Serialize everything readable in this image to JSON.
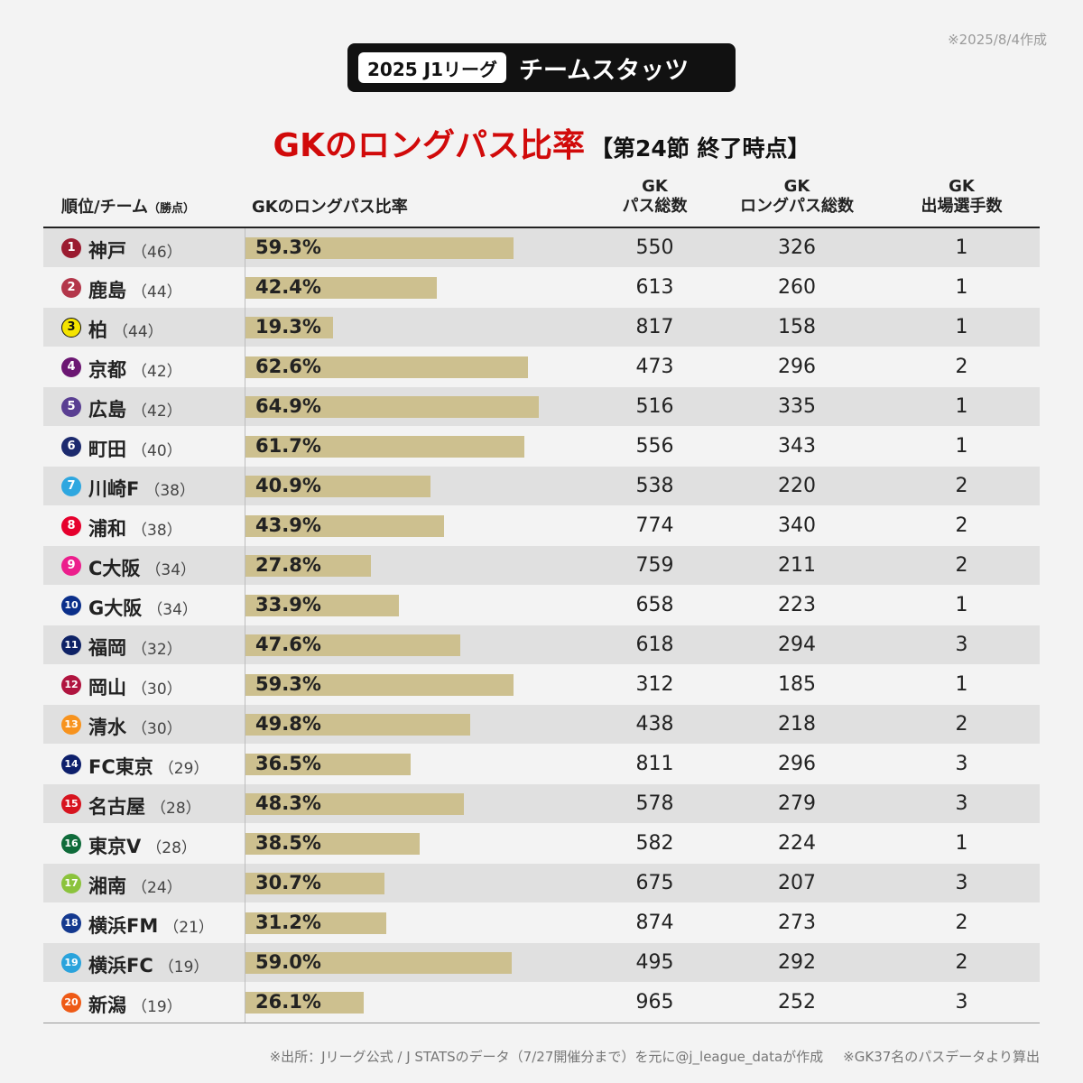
{
  "created_note": "※2025/8/4作成",
  "badge": {
    "league": "2025 J1リーグ",
    "title": "チームスタッツ"
  },
  "title": {
    "main": "GKのロングパス比率",
    "sub": "【第24節 終了時点】"
  },
  "headers": {
    "team": "順位/チーム",
    "team_small": "（勝点）",
    "bar": "GKのロングパス比率",
    "col3_l1": "GK",
    "col3_l2": "パス総数",
    "col4_l1": "GK",
    "col4_l2": "ロングパス総数",
    "col5_l1": "GK",
    "col5_l2": "出場選手数"
  },
  "chart_data": {
    "type": "bar",
    "title": "GKのロングパス比率",
    "xlim": [
      0,
      100
    ],
    "rows": [
      {
        "rank": "1",
        "team": "神戸",
        "points": "（46）",
        "ratio": 59.3,
        "ratio_label": "59.3%",
        "passes": "550",
        "long_passes": "326",
        "players": "1",
        "color": "#9b1b30"
      },
      {
        "rank": "2",
        "team": "鹿島",
        "points": "（44）",
        "ratio": 42.4,
        "ratio_label": "42.4%",
        "passes": "613",
        "long_passes": "260",
        "players": "1",
        "color": "#b3364a"
      },
      {
        "rank": "3",
        "team": "柏",
        "points": "（44）",
        "ratio": 19.3,
        "ratio_label": "19.3%",
        "passes": "817",
        "long_passes": "158",
        "players": "1",
        "color": "#f5e400"
      },
      {
        "rank": "4",
        "team": "京都",
        "points": "（42）",
        "ratio": 62.6,
        "ratio_label": "62.6%",
        "passes": "473",
        "long_passes": "296",
        "players": "2",
        "color": "#6b1672"
      },
      {
        "rank": "5",
        "team": "広島",
        "points": "（42）",
        "ratio": 64.9,
        "ratio_label": "64.9%",
        "passes": "516",
        "long_passes": "335",
        "players": "1",
        "color": "#5a3f92"
      },
      {
        "rank": "6",
        "team": "町田",
        "points": "（40）",
        "ratio": 61.7,
        "ratio_label": "61.7%",
        "passes": "556",
        "long_passes": "343",
        "players": "1",
        "color": "#1c2a6e"
      },
      {
        "rank": "7",
        "team": "川崎F",
        "points": "（38）",
        "ratio": 40.9,
        "ratio_label": "40.9%",
        "passes": "538",
        "long_passes": "220",
        "players": "2",
        "color": "#2ea7e0"
      },
      {
        "rank": "8",
        "team": "浦和",
        "points": "（38）",
        "ratio": 43.9,
        "ratio_label": "43.9%",
        "passes": "774",
        "long_passes": "340",
        "players": "2",
        "color": "#e6002d"
      },
      {
        "rank": "9",
        "team": "C大阪",
        "points": "（34）",
        "ratio": 27.8,
        "ratio_label": "27.8%",
        "passes": "759",
        "long_passes": "211",
        "players": "2",
        "color": "#ec1e8c"
      },
      {
        "rank": "10",
        "team": "G大阪",
        "points": "（34）",
        "ratio": 33.9,
        "ratio_label": "33.9%",
        "passes": "658",
        "long_passes": "223",
        "players": "1",
        "color": "#0b2f8a"
      },
      {
        "rank": "11",
        "team": "福岡",
        "points": "（32）",
        "ratio": 47.6,
        "ratio_label": "47.6%",
        "passes": "618",
        "long_passes": "294",
        "players": "3",
        "color": "#0e2266"
      },
      {
        "rank": "12",
        "team": "岡山",
        "points": "（30）",
        "ratio": 59.3,
        "ratio_label": "59.3%",
        "passes": "312",
        "long_passes": "185",
        "players": "1",
        "color": "#b0143f"
      },
      {
        "rank": "13",
        "team": "清水",
        "points": "（30）",
        "ratio": 49.8,
        "ratio_label": "49.8%",
        "passes": "438",
        "long_passes": "218",
        "players": "2",
        "color": "#f7931e"
      },
      {
        "rank": "14",
        "team": "FC東京",
        "points": "（29）",
        "ratio": 36.5,
        "ratio_label": "36.5%",
        "passes": "811",
        "long_passes": "296",
        "players": "3",
        "color": "#0d1f6b"
      },
      {
        "rank": "15",
        "team": "名古屋",
        "points": "（28）",
        "ratio": 48.3,
        "ratio_label": "48.3%",
        "passes": "578",
        "long_passes": "279",
        "players": "3",
        "color": "#d7141f"
      },
      {
        "rank": "16",
        "team": "東京V",
        "points": "（28）",
        "ratio": 38.5,
        "ratio_label": "38.5%",
        "passes": "582",
        "long_passes": "224",
        "players": "1",
        "color": "#0f6b3a"
      },
      {
        "rank": "17",
        "team": "湘南",
        "points": "（24）",
        "ratio": 30.7,
        "ratio_label": "30.7%",
        "passes": "675",
        "long_passes": "207",
        "players": "3",
        "color": "#8bc33c"
      },
      {
        "rank": "18",
        "team": "横浜FM",
        "points": "（21）",
        "ratio": 31.2,
        "ratio_label": "31.2%",
        "passes": "874",
        "long_passes": "273",
        "players": "2",
        "color": "#14398f"
      },
      {
        "rank": "19",
        "team": "横浜FC",
        "points": "（19）",
        "ratio": 59.0,
        "ratio_label": "59.0%",
        "passes": "495",
        "long_passes": "292",
        "players": "2",
        "color": "#2aa3dc"
      },
      {
        "rank": "20",
        "team": "新潟",
        "points": "（19）",
        "ratio": 26.1,
        "ratio_label": "26.1%",
        "passes": "965",
        "long_passes": "252",
        "players": "3",
        "color": "#ee5a16"
      }
    ]
  },
  "footer": {
    "source": "※出所：Jリーグ公式 / J STATSのデータ（7/27開催分まで）を元に@j_league_dataが作成",
    "note": "※GK37名のパスデータより算出"
  }
}
